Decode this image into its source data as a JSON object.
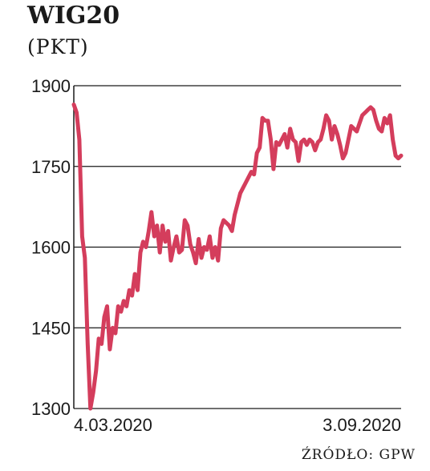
{
  "title": "WIG20",
  "subtitle": "(PKT)",
  "source": "ŹRÓDŁO: GPW",
  "colors": {
    "line": "#d43d5c",
    "grid": "#1a1a1a",
    "text": "#1a1a1a"
  },
  "chart_data": {
    "type": "line",
    "title": "WIG20",
    "ylabel": "(PKT)",
    "ylim": [
      1300,
      1900
    ],
    "yticks": [
      1900,
      1750,
      1600,
      1450,
      1300
    ],
    "ytick_labels": [
      "1900",
      "1750",
      "1600",
      "1450",
      "1300"
    ],
    "x_tick_labels": [
      "4.03.2020",
      "3.09.2020"
    ],
    "grid": true,
    "series": [
      {
        "color": "#d43d5c",
        "values": [
          1865,
          1850,
          1800,
          1620,
          1580,
          1420,
          1300,
          1330,
          1370,
          1430,
          1420,
          1470,
          1490,
          1410,
          1450,
          1440,
          1490,
          1480,
          1500,
          1490,
          1520,
          1510,
          1550,
          1520,
          1590,
          1610,
          1600,
          1630,
          1665,
          1620,
          1640,
          1590,
          1640,
          1610,
          1630,
          1575,
          1600,
          1620,
          1590,
          1595,
          1650,
          1640,
          1605,
          1590,
          1570,
          1615,
          1580,
          1600,
          1595,
          1620,
          1580,
          1600,
          1575,
          1635,
          1650,
          1645,
          1640,
          1630,
          1660,
          1680,
          1700,
          1710,
          1720,
          1730,
          1740,
          1735,
          1775,
          1785,
          1840,
          1835,
          1835,
          1800,
          1745,
          1795,
          1790,
          1800,
          1810,
          1785,
          1820,
          1800,
          1795,
          1760,
          1795,
          1800,
          1790,
          1800,
          1795,
          1780,
          1795,
          1800,
          1820,
          1845,
          1835,
          1800,
          1825,
          1810,
          1790,
          1765,
          1775,
          1800,
          1825,
          1820,
          1815,
          1830,
          1845,
          1850,
          1855,
          1860,
          1855,
          1835,
          1820,
          1815,
          1840,
          1830,
          1845,
          1800,
          1770,
          1765,
          1770
        ]
      }
    ]
  }
}
